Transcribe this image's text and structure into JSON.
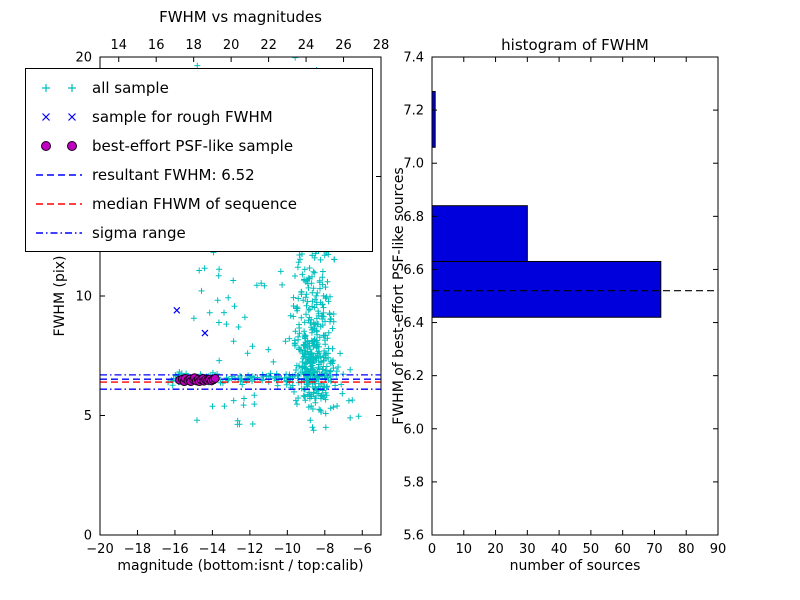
{
  "chart_data": [
    {
      "type": "scatter",
      "title": "FWHM vs magnitudes",
      "xlabel": "magnitude (bottom:isnt / top:calib)",
      "ylabel": "FWHM (pix)",
      "xlim": [
        -20,
        -5
      ],
      "top_xlim": [
        13,
        28
      ],
      "ylim": [
        0,
        20
      ],
      "x_ticks": [
        -20,
        -18,
        -16,
        -14,
        -12,
        -10,
        -8,
        -6
      ],
      "top_x_ticks": [
        14,
        16,
        18,
        20,
        22,
        24,
        26,
        28
      ],
      "y_ticks": [
        0,
        5,
        10,
        15,
        20
      ],
      "series": [
        {
          "name": "all sample",
          "marker": "plus",
          "color": "#00bfbf",
          "seed": 7,
          "clusters": [
            {
              "count": 260,
              "x": [
                "g",
                -8.6,
                0.5,
                -10.0,
                -6.4
              ],
              "y": [
                "g",
                7.0,
                1.0,
                4.3,
                20
              ]
            },
            {
              "count": 170,
              "x": [
                "g",
                -8.7,
                0.6,
                -10.3,
                -6.3
              ],
              "y": [
                "g",
                9.8,
                2.0,
                4.3,
                20
              ]
            },
            {
              "count": 90,
              "x": [
                "g",
                -8.8,
                0.7,
                -10.5,
                -6.5
              ],
              "y": [
                "u",
                11,
                20
              ]
            },
            {
              "count": 90,
              "x": [
                "u",
                -16.4,
                -9.7
              ],
              "y": [
                "g",
                6.55,
                0.13,
                6.2,
                7.0
              ]
            },
            {
              "count": 60,
              "x": [
                "g",
                -12.0,
                2.0,
                -17.2,
                -9.2
              ],
              "y": [
                "u",
                7.2,
                19.8
              ]
            },
            {
              "count": 12,
              "x": [
                "u",
                -15.0,
                -10.0
              ],
              "y": [
                "u",
                4.6,
                6.1
              ]
            },
            {
              "count": 10,
              "x": [
                "u",
                -7.6,
                -6.0
              ],
              "y": [
                "u",
                4.2,
                7.5
              ]
            }
          ]
        },
        {
          "name": "sample for rough FWHM",
          "marker": "x",
          "color": "#0000ff",
          "points": [
            [
              -15.9,
              9.4
            ],
            [
              -14.4,
              8.45
            ],
            [
              -15.1,
              6.55
            ],
            [
              -14.5,
              6.45
            ],
            [
              -13.9,
              6.55
            ]
          ]
        },
        {
          "name": "best-effort PSF-like sample",
          "marker": "circle",
          "color": "#c000c0",
          "edge": "#1a001a",
          "points": [
            [
              -15.75,
              6.48
            ],
            [
              -15.6,
              6.52
            ],
            [
              -15.5,
              6.42
            ],
            [
              -15.45,
              6.55
            ],
            [
              -15.3,
              6.47
            ],
            [
              -15.2,
              6.52
            ],
            [
              -15.15,
              6.42
            ],
            [
              -15.0,
              6.5
            ],
            [
              -14.95,
              6.58
            ],
            [
              -14.85,
              6.45
            ],
            [
              -14.75,
              6.52
            ],
            [
              -14.7,
              6.42
            ],
            [
              -14.6,
              6.5
            ],
            [
              -14.5,
              6.55
            ],
            [
              -14.45,
              6.44
            ],
            [
              -14.35,
              6.5
            ],
            [
              -14.25,
              6.47
            ],
            [
              -14.15,
              6.52
            ],
            [
              -14.05,
              6.45
            ],
            [
              -13.95,
              6.5
            ],
            [
              -13.85,
              6.55
            ]
          ]
        }
      ],
      "hlines": [
        {
          "name": "resultant-fwhm-line",
          "y": 6.52,
          "style": "dashed",
          "color": "#0000ff"
        },
        {
          "name": "median-fwhm-line",
          "y": 6.4,
          "style": "dashed",
          "color": "#ff0000"
        },
        {
          "name": "sigma-upper-line",
          "y": 6.7,
          "style": "dashdot",
          "color": "#0000ff"
        },
        {
          "name": "sigma-lower-line",
          "y": 6.1,
          "style": "dashdot",
          "color": "#0000ff"
        }
      ],
      "legend": [
        {
          "marker": "plus",
          "color": "#00bfbf",
          "label": "all sample"
        },
        {
          "marker": "x",
          "color": "#0000ff",
          "label": "sample for rough FWHM"
        },
        {
          "marker": "circle",
          "color": "#c000c0",
          "edge": "#1a001a",
          "label": "best-effort PSF-like sample"
        },
        {
          "marker": "dashed",
          "color": "#0000ff",
          "label": "resultant FWHM: 6.52"
        },
        {
          "marker": "dashed",
          "color": "#ff0000",
          "label": "median FHWM of sequence"
        },
        {
          "marker": "dashdot",
          "color": "#0000ff",
          "label": "sigma range"
        }
      ],
      "resultant_fwhm": 6.52
    },
    {
      "type": "bar",
      "orientation": "horizontal",
      "title": "histogram of FWHM",
      "xlabel": "number of sources",
      "ylabel": "FWHM of best-effort PSF-like sources",
      "xlim": [
        0,
        90
      ],
      "ylim": [
        5.6,
        7.4
      ],
      "x_ticks": [
        0,
        10,
        20,
        30,
        40,
        50,
        60,
        70,
        80,
        90
      ],
      "y_tick_labels": [
        "5.6",
        "5.8",
        "6.0",
        "6.2",
        "6.4",
        "6.6",
        "6.8",
        "7.0",
        "7.2",
        "7.4"
      ],
      "bars": [
        {
          "y0": 6.42,
          "y1": 6.63,
          "count": 72
        },
        {
          "y0": 6.63,
          "y1": 6.84,
          "count": 30
        },
        {
          "y0": 7.06,
          "y1": 7.27,
          "count": 1
        }
      ],
      "dashed_line_y": 6.52,
      "bar_color": "#0000dd",
      "edge_color": "#000000",
      "line_color": "#000000"
    }
  ]
}
